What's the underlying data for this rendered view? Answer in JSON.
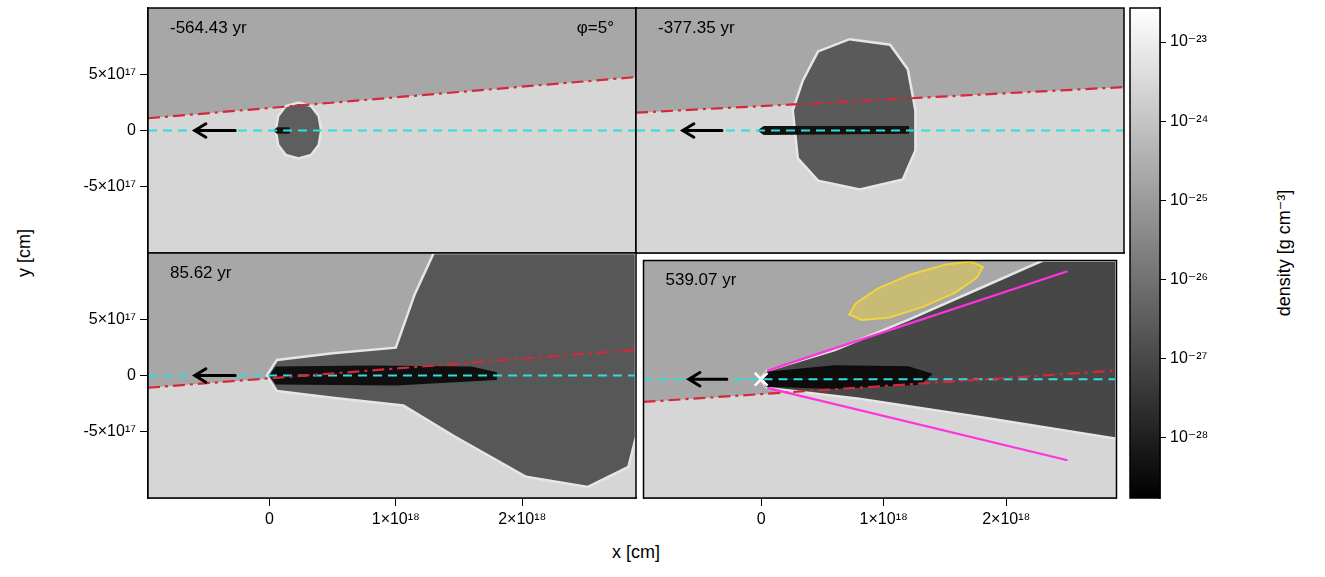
{
  "chart_data": [
    {
      "type": "scatter",
      "title": "-564.43 yr",
      "annotations": [
        "φ=5°"
      ],
      "tick_labels": "y",
      "grid": false,
      "xlim": [
        -9.6e+17,
        2.9e+18
      ],
      "xticks": [
        0,
        {
          "value": 1e+18,
          "label": "1×10¹⁸"
        },
        {
          "value": 2e+18,
          "label": "2×10¹⁸"
        }
      ],
      "ylim": [
        -1.1e+18,
        1.1e+18
      ],
      "yticks": [
        {
          "value": -5e+17,
          "label": "-5×10¹⁷"
        },
        0,
        {
          "value": 5e+17,
          "label": "5×10¹⁷"
        }
      ],
      "series": [
        {
          "type": "area",
          "line_style": "solid",
          "color": "#5e5e5e",
          "x": [
            4.1e+17,
            3.9e+17,
            3.3e+17,
            2.3e+17,
            1.3e+17,
            7e+16,
            5e+16,
            7e+16,
            1.3e+17,
            2.3e+17,
            3.3e+17,
            3.9e+17
          ],
          "values": [
            0,
            1.3e+17,
            2.2e+17,
            2.5e+17,
            2.2e+17,
            1.3e+17,
            0,
            -1.3e+17,
            -2.2e+17,
            -2.5e+17,
            -2.2e+17,
            -1.3e+17
          ]
        },
        {
          "type": "area",
          "color": "#141414",
          "x": [
            3e+16,
            6e+16,
            1.6e+17,
            1.6e+17,
            6e+16
          ],
          "values": [
            0,
            3e+16,
            3e+16,
            -3e+16,
            -3e+16
          ]
        },
        {
          "type": "line",
          "line_style": "dashed",
          "color": "#33dddd",
          "x": [
            -9.6e+17,
            2.9e+18
          ],
          "values": [
            0,
            0
          ]
        },
        {
          "type": "line",
          "line_style": "dashdot",
          "color": "#d62839",
          "x": [
            -9.6e+17,
            2.9e+18
          ],
          "values": [
            1.1e+17,
            4.8e+17
          ]
        },
        {
          "type": "arrow",
          "color": "#000000",
          "x": [
            -2.7e+17,
            -5.9e+17
          ],
          "values": [
            0,
            0
          ]
        }
      ]
    },
    {
      "type": "scatter",
      "title": "-377.35 yr",
      "tick_labels": false,
      "grid": false,
      "xlim": [
        -9.6e+17,
        2.9e+18
      ],
      "xticks": [
        0,
        {
          "value": 1e+18,
          "label": "1×10¹⁸"
        },
        {
          "value": 2e+18,
          "label": "2×10¹⁸"
        }
      ],
      "ylim": [
        -1.1e+18,
        1.1e+18
      ],
      "yticks": [
        {
          "value": -5e+17,
          "label": "-5×10¹⁷"
        },
        0,
        {
          "value": 5e+17,
          "label": "5×10¹⁷"
        }
      ],
      "series": [
        {
          "type": "area",
          "line_style": "solid",
          "color": "#5a5a5a",
          "x": [
            2.8e+17,
            3.6e+17,
            4.8e+17,
            7.3e+17,
            1.05e+18,
            1.19e+18,
            1.25e+18,
            1.25e+18,
            1.15e+18,
            8.1e+17,
            4.8e+17,
            3.2e+17
          ],
          "values": [
            1.8e+17,
            4.5e+17,
            7.1e+17,
            8.2e+17,
            7.7e+17,
            5.5e+17,
            1.8e+17,
            -1.8e+17,
            -4.4e+17,
            -5.3e+17,
            -4.5e+17,
            -2.5e+17
          ]
        },
        {
          "type": "area",
          "color": "#111111",
          "x": [
            0,
            5e+16,
            1.2e+18,
            1.2e+18,
            5e+16
          ],
          "values": [
            0,
            4e+16,
            4e+16,
            -3e+16,
            -4e+16
          ]
        },
        {
          "type": "line",
          "line_style": "dashed",
          "color": "#33dddd",
          "x": [
            -9.6e+17,
            2.9e+18
          ],
          "values": [
            0,
            0
          ]
        },
        {
          "type": "line",
          "line_style": "dashdot",
          "color": "#d62839",
          "x": [
            -9.6e+17,
            2.9e+18
          ],
          "values": [
            1.6e+17,
            3.9e+17
          ]
        },
        {
          "type": "arrow",
          "color": "#000000",
          "x": [
            -2.8e+17,
            -5.9e+17
          ],
          "values": [
            0,
            0
          ]
        }
      ]
    },
    {
      "type": "scatter",
      "title": "85.62 yr",
      "tick_labels": true,
      "grid": false,
      "xlim": [
        -9.6e+17,
        2.9e+18
      ],
      "xticks": [
        0,
        {
          "value": 1e+18,
          "label": "1×10¹⁸"
        },
        {
          "value": 2e+18,
          "label": "2×10¹⁸"
        }
      ],
      "ylim": [
        -1.1e+18,
        1.1e+18
      ],
      "yticks": [
        {
          "value": -5e+17,
          "label": "-5×10¹⁷"
        },
        0,
        {
          "value": 5e+17,
          "label": "5×10¹⁷"
        }
      ],
      "series": [
        {
          "type": "area",
          "line_style": "solid",
          "color": "#575757",
          "x": [
            -2e+16,
            6e+16,
            5e+17,
            1e+18,
            1.15e+18,
            1.3e+18,
            2.9e+18,
            2.9e+18,
            2.84e+18,
            2.52e+18,
            2.03e+18,
            1.47e+18,
            1.06e+18,
            5e+17,
            6e+16
          ],
          "values": [
            0,
            1.4e+17,
            2e+17,
            2.5e+17,
            7.3e+17,
            1.1e+18,
            1.1e+18,
            -5.5e+17,
            -8.2e+17,
            -1e+18,
            -9.1e+17,
            -5.5e+17,
            -2.7e+17,
            -2e+17,
            -1.4e+17
          ]
        },
        {
          "type": "area",
          "color": "#0f0f0f",
          "x": [
            0,
            5e+16,
            8e+17,
            1.6e+18,
            1.8e+18,
            1.8e+18,
            1e+18,
            5e+16
          ],
          "values": [
            0,
            8e+16,
            9e+16,
            8e+16,
            3e+16,
            -4e+16,
            -9e+16,
            -8e+16
          ]
        },
        {
          "type": "line",
          "line_style": "dashed",
          "color": "#33dddd",
          "x": [
            -9.6e+17,
            2.9e+18
          ],
          "values": [
            0,
            0
          ]
        },
        {
          "type": "line",
          "line_style": "dashdot",
          "color": "#d62839",
          "x": [
            -9.6e+17,
            2.9e+18
          ],
          "values": [
            -1.1e+17,
            2.3e+17
          ]
        },
        {
          "type": "arrow",
          "color": "#000000",
          "x": [
            -2.7e+17,
            -5.9e+17
          ],
          "values": [
            0,
            0
          ]
        }
      ]
    },
    {
      "type": "scatter",
      "title": "539.07 yr",
      "tick_labels": "x",
      "grid": false,
      "xlim": [
        -9.6e+17,
        2.9e+18
      ],
      "xticks": [
        0,
        {
          "value": 1e+18,
          "label": "1×10¹⁸"
        },
        {
          "value": 2e+18,
          "label": "2×10¹⁸"
        }
      ],
      "ylim": [
        -1.1e+18,
        1.1e+18
      ],
      "yticks": [
        {
          "value": -5e+17,
          "label": "-5×10¹⁷"
        },
        0,
        {
          "value": 5e+17,
          "label": "5×10¹⁷"
        }
      ],
      "series": [
        {
          "type": "area",
          "line_style": "solid",
          "color": "#474747",
          "x": [
            -1e+16,
            5e+16,
            6e+17,
            1.2e+18,
            1.8e+18,
            2.2e+18,
            2.3e+18,
            2.9e+18,
            2.9e+18,
            1.85e+18,
            8e+17,
            5e+16
          ],
          "values": [
            0,
            8e+16,
            2.7e+17,
            5.5e+17,
            8.5e+17,
            1.05e+18,
            1.1e+18,
            1.1e+18,
            -5.5e+17,
            -3.6e+17,
            -1.8e+17,
            -8e+16
          ]
        },
        {
          "type": "area",
          "color": "#0c0c0c",
          "x": [
            0,
            4e+16,
            6e+17,
            1.2e+18,
            1.4e+18,
            1.3e+18,
            6e+17,
            4e+16
          ],
          "values": [
            0,
            7e+16,
            1.3e+17,
            1.2e+17,
            5e+16,
            -5e+16,
            -9e+16,
            -7e+16
          ]
        },
        {
          "type": "line",
          "line_style": "dashed",
          "color": "#33dddd",
          "x": [
            -9.6e+17,
            2.9e+18
          ],
          "values": [
            0,
            0
          ]
        },
        {
          "type": "line",
          "line_style": "dashdot",
          "color": "#d62839",
          "x": [
            -9.6e+17,
            2.9e+18
          ],
          "values": [
            -2.1e+17,
            8e+16
          ]
        },
        {
          "type": "line",
          "line_style": "solid",
          "color": "#ff33dd",
          "x": [
            5e+16,
            2.5e+18
          ],
          "values": [
            8e+16,
            1e+18
          ]
        },
        {
          "type": "line",
          "line_style": "solid",
          "color": "#ff33dd",
          "x": [
            5e+16,
            2.5e+18
          ],
          "values": [
            -8e+16,
            -7.5e+17
          ]
        },
        {
          "type": "region",
          "color": "#f2d43a",
          "x": [
            1.81e+18,
            1.76e+18,
            1.58e+18,
            1.32e+18,
            1.04e+18,
            8.2e+17,
            7.2e+17,
            7.7e+17,
            9.5e+17,
            1.22e+18,
            1.5e+18,
            1.71e+18
          ],
          "values": [
            1.04e+18,
            9.4e+17,
            8e+17,
            6.7e+17,
            5.7e+17,
            5.5e+17,
            6e+17,
            7e+17,
            8.4e+17,
            9.7e+17,
            1.06e+18,
            1.09e+18
          ]
        },
        {
          "type": "arrow",
          "color": "#000000",
          "x": [
            -2.8e+17,
            -5.9e+17
          ],
          "values": [
            0,
            0
          ]
        },
        {
          "type": "scatter",
          "marker": "cross",
          "color": "#ffffff",
          "x": [
            0
          ],
          "values": [
            0
          ]
        }
      ]
    }
  ],
  "xlabel": "x [cm]",
  "ylabel": "y [cm]",
  "colorbar": {
    "label": "density [g cm⁻³]",
    "log": true,
    "colors": [
      "#000000",
      "#ffffff"
    ],
    "range": [
      1.7e-29,
      2.7e-23
    ],
    "ticks": [
      {
        "value": 1e-23,
        "label": "10⁻²³"
      },
      {
        "value": 1e-24,
        "label": "10⁻²⁴"
      },
      {
        "value": 1e-25,
        "label": "10⁻²⁵"
      },
      {
        "value": 1e-26,
        "label": "10⁻²⁶"
      },
      {
        "value": 1e-27,
        "label": "10⁻²⁷"
      },
      {
        "value": 1e-28,
        "label": "10⁻²⁸"
      }
    ]
  }
}
